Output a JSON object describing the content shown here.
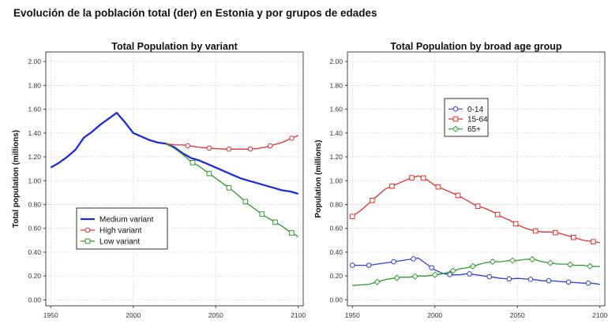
{
  "page": {
    "heading": "Evolución de la población total (der) en Estonia y por grupos de edades"
  },
  "chart_data": [
    {
      "type": "line",
      "title": "Total Population by variant",
      "xlabel": "",
      "ylabel": "Total population (millions)",
      "xlim": [
        1947,
        2103
      ],
      "ylim": [
        -0.05,
        2.08
      ],
      "x_ticks": [
        1950,
        2000,
        2050,
        2100
      ],
      "x_tick_labels": [
        "1950",
        "2000",
        "2050",
        "2100"
      ],
      "y_ticks": [
        0,
        0.2,
        0.4,
        0.6,
        0.8,
        1.0,
        1.2,
        1.4,
        1.6,
        1.8,
        2.0
      ],
      "y_tick_labels": [
        "0.00",
        "0.20",
        "0.40",
        "0.60",
        "0.80",
        "1.00",
        "1.20",
        "1.40",
        "1.60",
        "1.80",
        "2.00"
      ],
      "grid": true,
      "legend_position": "lower-left",
      "series": [
        {
          "name": "Medium variant",
          "color": "#1f2bd6",
          "marker": "none",
          "x": [
            1950,
            1955,
            1960,
            1965,
            1970,
            1975,
            1980,
            1985,
            1990,
            1995,
            2000,
            2005,
            2010,
            2015,
            2020,
            2025,
            2030,
            2035,
            2040,
            2045,
            2050,
            2055,
            2060,
            2065,
            2070,
            2075,
            2080,
            2085,
            2090,
            2095,
            2100
          ],
          "y": [
            1.11,
            1.15,
            1.2,
            1.26,
            1.36,
            1.41,
            1.47,
            1.52,
            1.57,
            1.49,
            1.4,
            1.37,
            1.34,
            1.32,
            1.31,
            1.28,
            1.23,
            1.19,
            1.17,
            1.14,
            1.11,
            1.08,
            1.05,
            1.02,
            1.0,
            0.98,
            0.96,
            0.94,
            0.92,
            0.91,
            0.89
          ]
        },
        {
          "name": "High variant",
          "color": "#e0302c",
          "marker": "circle",
          "x": [
            2020,
            2025,
            2030,
            2035,
            2040,
            2045,
            2050,
            2055,
            2060,
            2065,
            2070,
            2075,
            2080,
            2085,
            2090,
            2095,
            2100
          ],
          "y": [
            1.31,
            1.3,
            1.3,
            1.29,
            1.28,
            1.275,
            1.27,
            1.265,
            1.265,
            1.265,
            1.265,
            1.27,
            1.28,
            1.3,
            1.32,
            1.35,
            1.38
          ],
          "marker_x": [
            2033,
            2046,
            2058,
            2071,
            2083,
            2096
          ]
        },
        {
          "name": "Low variant",
          "color": "#2e9a2e",
          "marker": "square",
          "x": [
            2020,
            2025,
            2030,
            2035,
            2040,
            2045,
            2050,
            2055,
            2060,
            2065,
            2070,
            2075,
            2080,
            2085,
            2090,
            2095,
            2100
          ],
          "y": [
            1.31,
            1.27,
            1.22,
            1.16,
            1.12,
            1.07,
            1.02,
            0.97,
            0.92,
            0.86,
            0.8,
            0.75,
            0.7,
            0.66,
            0.62,
            0.57,
            0.53
          ],
          "marker_x": [
            2036,
            2046,
            2058,
            2068,
            2078,
            2086,
            2096
          ]
        }
      ]
    },
    {
      "type": "line",
      "title": "Total Population by broad age group",
      "xlabel": "",
      "ylabel": "Population (millions)",
      "xlim": [
        1947,
        2103
      ],
      "ylim": [
        -0.05,
        2.08
      ],
      "x_ticks": [
        1950,
        2000,
        2050,
        2100
      ],
      "x_tick_labels": [
        "1950",
        "2000",
        "2050",
        "2100"
      ],
      "y_ticks": [
        0,
        0.2,
        0.4,
        0.6,
        0.8,
        1.0,
        1.2,
        1.4,
        1.6,
        1.8,
        2.0
      ],
      "y_tick_labels": [
        "0.00",
        "0.20",
        "0.40",
        "0.60",
        "0.80",
        "1.00",
        "1.20",
        "1.40",
        "1.60",
        "1.80",
        "2.00"
      ],
      "grid": true,
      "legend_position": "top-left",
      "series": [
        {
          "name": "0-14",
          "color": "#2f3fd6",
          "marker": "circle",
          "x": [
            1950,
            1955,
            1960,
            1965,
            1970,
            1975,
            1980,
            1985,
            1990,
            1995,
            2000,
            2005,
            2010,
            2015,
            2020,
            2025,
            2030,
            2035,
            2040,
            2045,
            2050,
            2055,
            2060,
            2065,
            2070,
            2075,
            2080,
            2085,
            2090,
            2095,
            2100
          ],
          "y": [
            0.29,
            0.29,
            0.29,
            0.3,
            0.31,
            0.32,
            0.33,
            0.34,
            0.35,
            0.3,
            0.25,
            0.22,
            0.21,
            0.21,
            0.22,
            0.21,
            0.2,
            0.19,
            0.18,
            0.175,
            0.18,
            0.175,
            0.17,
            0.16,
            0.16,
            0.155,
            0.15,
            0.145,
            0.14,
            0.14,
            0.13
          ],
          "marker_x": [
            1950,
            1960,
            1975,
            1987,
            1998,
            2009,
            2021,
            2033,
            2045,
            2058,
            2069,
            2081,
            2093
          ]
        },
        {
          "name": "15-64",
          "color": "#e0302c",
          "marker": "square",
          "x": [
            1950,
            1955,
            1960,
            1965,
            1970,
            1975,
            1980,
            1985,
            1990,
            1995,
            2000,
            2005,
            2010,
            2015,
            2020,
            2025,
            2030,
            2035,
            2040,
            2045,
            2050,
            2055,
            2060,
            2065,
            2070,
            2075,
            2080,
            2085,
            2090,
            2095,
            2100
          ],
          "y": [
            0.7,
            0.75,
            0.81,
            0.87,
            0.93,
            0.96,
            0.99,
            1.02,
            1.04,
            1.01,
            0.96,
            0.93,
            0.9,
            0.87,
            0.83,
            0.79,
            0.77,
            0.74,
            0.7,
            0.67,
            0.63,
            0.6,
            0.58,
            0.57,
            0.57,
            0.56,
            0.54,
            0.52,
            0.5,
            0.49,
            0.48
          ],
          "marker_x": [
            1950,
            1962,
            1974,
            1986,
            1993,
            2002,
            2014,
            2026,
            2038,
            2049,
            2061,
            2073,
            2084,
            2096
          ]
        },
        {
          "name": "65+",
          "color": "#2e9a2e",
          "marker": "diamond",
          "x": [
            1950,
            1955,
            1960,
            1965,
            1970,
            1975,
            1980,
            1985,
            1990,
            1995,
            2000,
            2005,
            2010,
            2015,
            2020,
            2025,
            2030,
            2035,
            2040,
            2045,
            2050,
            2055,
            2060,
            2065,
            2070,
            2075,
            2080,
            2085,
            2090,
            2095,
            2100
          ],
          "y": [
            0.12,
            0.125,
            0.13,
            0.15,
            0.17,
            0.18,
            0.19,
            0.19,
            0.2,
            0.2,
            0.21,
            0.22,
            0.24,
            0.26,
            0.27,
            0.29,
            0.31,
            0.32,
            0.32,
            0.33,
            0.33,
            0.34,
            0.34,
            0.32,
            0.31,
            0.3,
            0.3,
            0.29,
            0.29,
            0.28,
            0.28
          ],
          "marker_x": [
            1965,
            1977,
            1988,
            2000,
            2011,
            2023,
            2035,
            2047,
            2059,
            2070,
            2082,
            2094
          ]
        }
      ]
    }
  ]
}
